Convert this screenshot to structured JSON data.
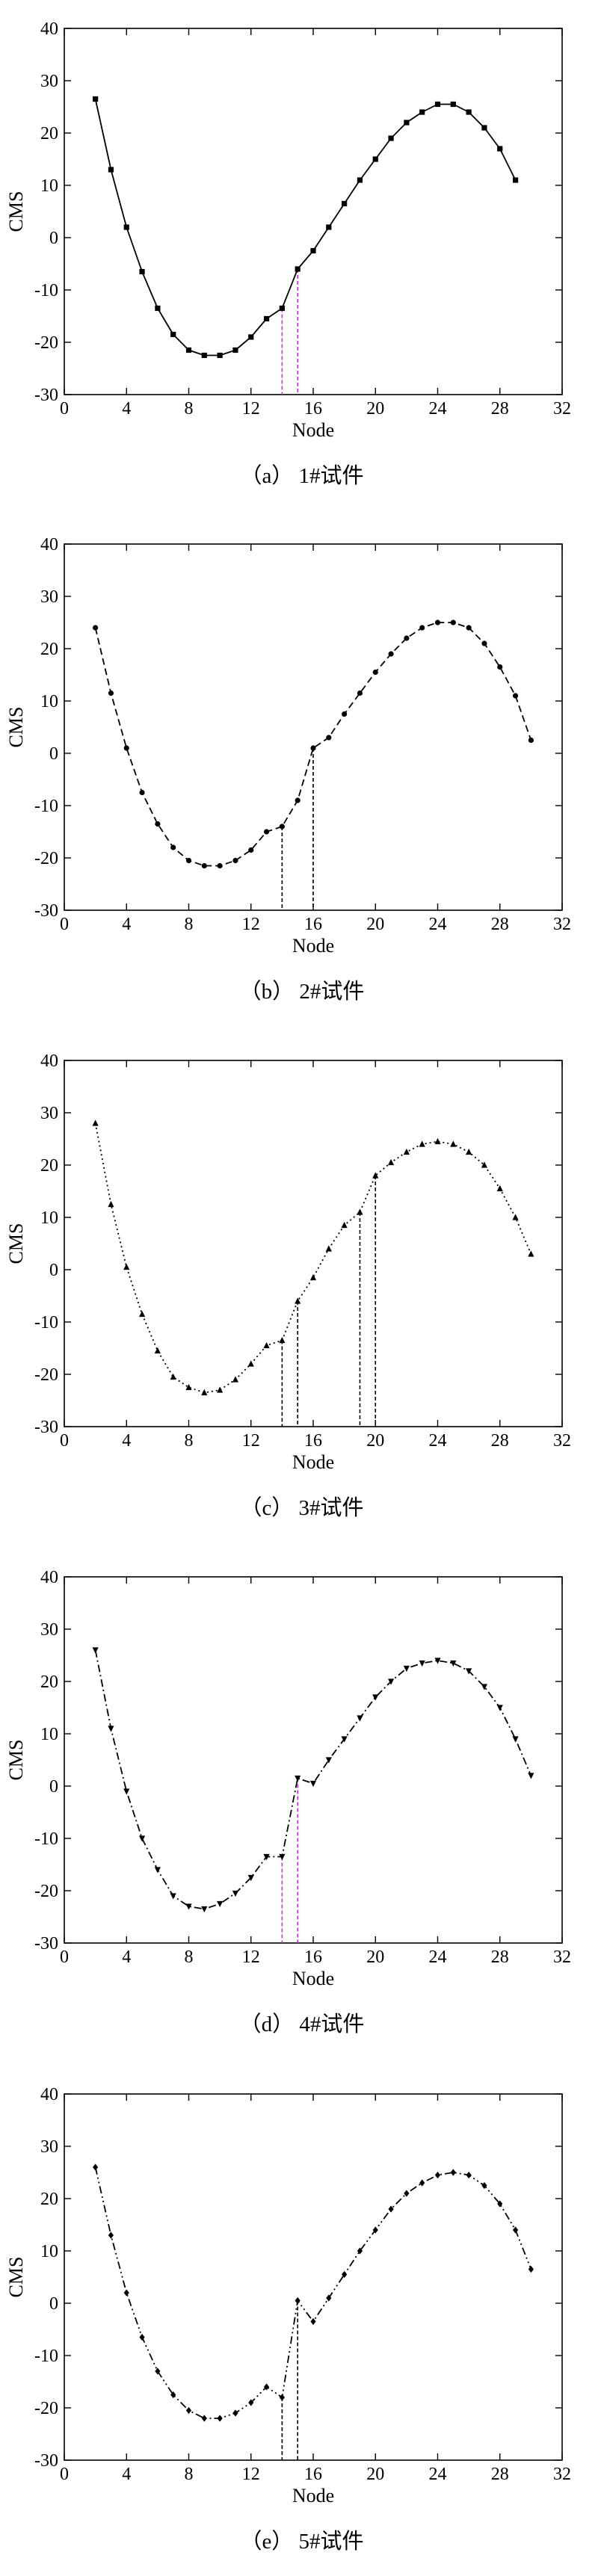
{
  "charts": [
    {
      "caption": "（a）  1#试件",
      "chart_data": {
        "type": "line",
        "title": "",
        "xlabel": "Node",
        "ylabel": "CMS",
        "xlim": [
          0,
          32
        ],
        "ylim": [
          -30,
          40
        ],
        "xticks": [
          0,
          4,
          8,
          12,
          16,
          20,
          24,
          28,
          32
        ],
        "yticks": [
          -30,
          -20,
          -10,
          0,
          10,
          20,
          30,
          40
        ],
        "grid": false,
        "line_style": "solid",
        "marker": "square",
        "series": [
          {
            "x": [
              2,
              3,
              4,
              5,
              6,
              7,
              8,
              9,
              10,
              11,
              12,
              13,
              14,
              15,
              16,
              17,
              18,
              19,
              20,
              21,
              22,
              23,
              24,
              25,
              26,
              27,
              28,
              29
            ],
            "values": [
              26.5,
              13,
              2,
              -6.5,
              -13.5,
              -18.5,
              -21.5,
              -22.5,
              -22.5,
              -21.5,
              -19,
              -15.5,
              -13.5,
              -6,
              -2.5,
              2,
              6.5,
              11,
              15,
              19,
              22,
              24,
              25.5,
              25.5,
              24,
              21,
              17,
              11
            ]
          }
        ],
        "markers": [
          {
            "x": 14,
            "from": -13.5,
            "color": "#cc33cc"
          },
          {
            "x": 15,
            "from": -6,
            "color": "#cc33cc"
          }
        ]
      }
    },
    {
      "caption": "（b）  2#试件",
      "chart_data": {
        "type": "line",
        "title": "",
        "xlabel": "Node",
        "ylabel": "CMS",
        "xlim": [
          0,
          32
        ],
        "ylim": [
          -30,
          40
        ],
        "xticks": [
          0,
          4,
          8,
          12,
          16,
          20,
          24,
          28,
          32
        ],
        "yticks": [
          -30,
          -20,
          -10,
          0,
          10,
          20,
          30,
          40
        ],
        "grid": false,
        "line_style": "dashed",
        "marker": "circle",
        "series": [
          {
            "x": [
              2,
              3,
              4,
              5,
              6,
              7,
              8,
              9,
              10,
              11,
              12,
              13,
              14,
              15,
              16,
              17,
              18,
              19,
              20,
              21,
              22,
              23,
              24,
              25,
              26,
              27,
              28,
              29,
              30
            ],
            "values": [
              24,
              11.5,
              1,
              -7.5,
              -13.5,
              -18,
              -20.5,
              -21.5,
              -21.5,
              -20.5,
              -18.5,
              -15,
              -14,
              -9,
              1,
              3,
              7.5,
              11.5,
              15.5,
              19,
              22,
              24,
              25,
              25,
              24,
              21,
              16.5,
              11,
              2.5
            ]
          }
        ],
        "markers": [
          {
            "x": 14,
            "from": -14,
            "color": "#000000"
          },
          {
            "x": 16,
            "from": 1,
            "color": "#000000"
          }
        ]
      }
    },
    {
      "caption": "（c）  3#试件",
      "chart_data": {
        "type": "line",
        "title": "",
        "xlabel": "Node",
        "ylabel": "CMS",
        "xlim": [
          0,
          32
        ],
        "ylim": [
          -30,
          40
        ],
        "xticks": [
          0,
          4,
          8,
          12,
          16,
          20,
          24,
          28,
          32
        ],
        "yticks": [
          -30,
          -20,
          -10,
          0,
          10,
          20,
          30,
          40
        ],
        "grid": false,
        "line_style": "dotted",
        "marker": "triangle",
        "series": [
          {
            "x": [
              2,
              3,
              4,
              5,
              6,
              7,
              8,
              9,
              10,
              11,
              12,
              13,
              14,
              15,
              16,
              17,
              18,
              19,
              20,
              21,
              22,
              23,
              24,
              25,
              26,
              27,
              28,
              29,
              30
            ],
            "values": [
              28,
              12.5,
              0.5,
              -8.5,
              -15.5,
              -20.5,
              -22.5,
              -23.5,
              -23,
              -21,
              -18,
              -14.5,
              -13.5,
              -6,
              -1.5,
              4,
              8.5,
              11,
              18,
              20.5,
              22.5,
              24,
              24.5,
              24,
              22.5,
              20,
              15.5,
              10,
              3
            ]
          }
        ],
        "markers": [
          {
            "x": 14,
            "from": -13.5,
            "color": "#000000"
          },
          {
            "x": 15,
            "from": -6,
            "color": "#000000"
          },
          {
            "x": 19,
            "from": 11,
            "color": "#000000"
          },
          {
            "x": 20,
            "from": 18,
            "color": "#000000"
          }
        ]
      }
    },
    {
      "caption": "（d）  4#试件",
      "chart_data": {
        "type": "line",
        "title": "",
        "xlabel": "Node",
        "ylabel": "CMS",
        "xlim": [
          0,
          32
        ],
        "ylim": [
          -30,
          40
        ],
        "xticks": [
          0,
          4,
          8,
          12,
          16,
          20,
          24,
          28,
          32
        ],
        "yticks": [
          -30,
          -20,
          -10,
          0,
          10,
          20,
          30,
          40
        ],
        "grid": false,
        "line_style": "dashdot",
        "marker": "inverted-triangle",
        "series": [
          {
            "x": [
              2,
              3,
              4,
              5,
              6,
              7,
              8,
              9,
              10,
              11,
              12,
              13,
              14,
              15,
              16,
              17,
              18,
              19,
              20,
              21,
              22,
              23,
              24,
              25,
              26,
              27,
              28,
              29,
              30
            ],
            "values": [
              26,
              11,
              -1,
              -10,
              -16,
              -21,
              -23,
              -23.5,
              -22.5,
              -20.5,
              -17.5,
              -13.5,
              -13.5,
              1.5,
              0.5,
              5,
              9,
              13,
              17,
              20,
              22.5,
              23.5,
              24,
              23.5,
              22,
              19,
              15,
              9,
              2
            ]
          }
        ],
        "markers": [
          {
            "x": 14,
            "from": -13.5,
            "color": "#cc33cc"
          },
          {
            "x": 15,
            "from": 1.5,
            "color": "#cc33cc"
          }
        ]
      }
    },
    {
      "caption": "（e）  5#试件",
      "chart_data": {
        "type": "line",
        "title": "",
        "xlabel": "Node",
        "ylabel": "CMS",
        "xlim": [
          0,
          32
        ],
        "ylim": [
          -30,
          40
        ],
        "xticks": [
          0,
          4,
          8,
          12,
          16,
          20,
          24,
          28,
          32
        ],
        "yticks": [
          -30,
          -20,
          -10,
          0,
          10,
          20,
          30,
          40
        ],
        "grid": false,
        "line_style": "dashdotdot",
        "marker": "diamond",
        "series": [
          {
            "x": [
              2,
              3,
              4,
              5,
              6,
              7,
              8,
              9,
              10,
              11,
              12,
              13,
              14,
              15,
              16,
              17,
              18,
              19,
              20,
              21,
              22,
              23,
              24,
              25,
              26,
              27,
              28,
              29,
              30
            ],
            "values": [
              26,
              13,
              2,
              -6.5,
              -13,
              -17.5,
              -20.5,
              -22,
              -22,
              -21,
              -19,
              -16,
              -18,
              0.5,
              -3.5,
              1,
              5.5,
              10,
              14,
              18,
              21,
              23,
              24.5,
              25,
              24.5,
              22.5,
              19,
              14,
              6.5
            ]
          }
        ],
        "markers": [
          {
            "x": 14,
            "from": -18,
            "color": "#000000"
          },
          {
            "x": 15,
            "from": 0.5,
            "color": "#000000"
          }
        ]
      }
    }
  ]
}
